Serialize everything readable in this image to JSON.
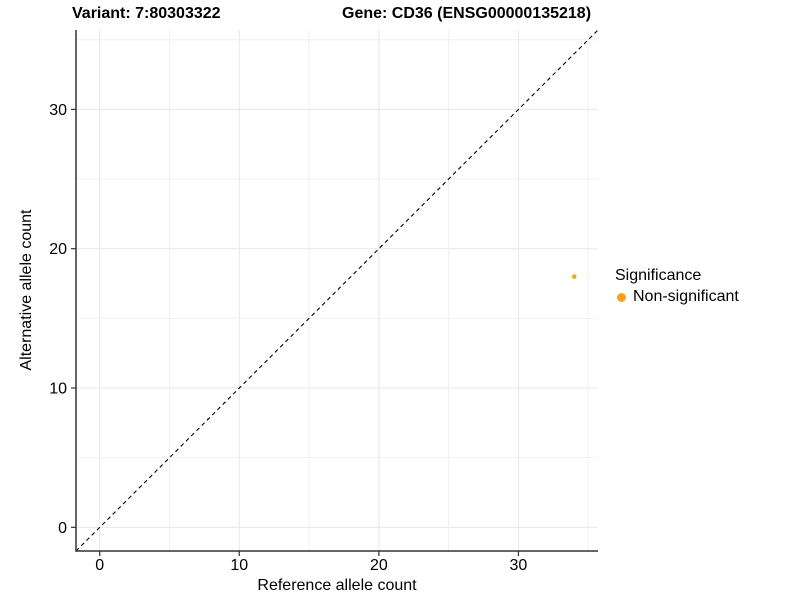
{
  "chart_data": {
    "type": "scatter",
    "title_left": "Variant: 7:80303322",
    "title_right": "Gene: CD36 (ENSG00000135218)",
    "xlabel": "Reference allele count",
    "ylabel": "Alternative allele count",
    "xlim": [
      -1.7,
      35.7
    ],
    "ylim": [
      -1.7,
      35.7
    ],
    "x_ticks": [
      0,
      10,
      20,
      30
    ],
    "y_ticks": [
      0,
      10,
      20,
      30
    ],
    "grid": {
      "min": 0,
      "max": 35,
      "step": 5
    },
    "series": [
      {
        "name": "Non-significant",
        "color": "#FAA21E",
        "points": [
          {
            "x": 34,
            "y": 18
          }
        ]
      }
    ],
    "reference_line": {
      "type": "identity",
      "style": "dashed",
      "color": "#000000"
    },
    "legend": {
      "title": "Significance",
      "position": "right",
      "entries": [
        {
          "label": "Non-significant",
          "color": "#FAA21E"
        }
      ]
    },
    "colors": {
      "background": "#FFFFFF",
      "grid_major": "#E7E7E7",
      "grid_minor": "#F0F0F0",
      "axis_line": "#333333",
      "tick_label": "#000000"
    }
  }
}
